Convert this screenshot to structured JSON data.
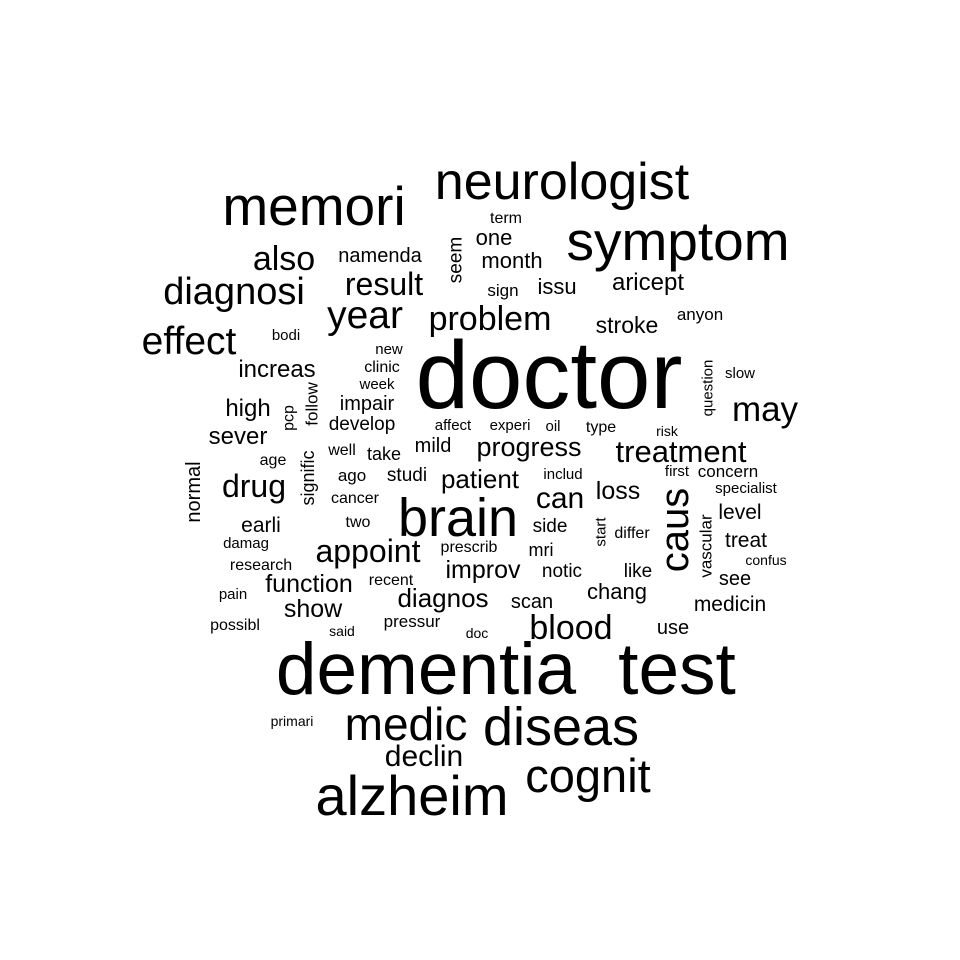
{
  "chart_data": {
    "type": "wordcloud",
    "text_color": "#000000",
    "background": "#ffffff",
    "words": [
      {
        "text": "doctor",
        "weight": 100
      },
      {
        "text": "dementia",
        "weight": 76
      },
      {
        "text": "test",
        "weight": 76
      },
      {
        "text": "alzheim",
        "weight": 58
      },
      {
        "text": "symptom",
        "weight": 57
      },
      {
        "text": "memori",
        "weight": 57
      },
      {
        "text": "diseas",
        "weight": 56
      },
      {
        "text": "brain",
        "weight": 56
      },
      {
        "text": "neurologist",
        "weight": 54
      },
      {
        "text": "cognit",
        "weight": 49
      },
      {
        "text": "medic",
        "weight": 48
      },
      {
        "text": "caus",
        "weight": 42
      },
      {
        "text": "year",
        "weight": 41
      },
      {
        "text": "effect",
        "weight": 41
      },
      {
        "text": "diagnosi",
        "weight": 40
      },
      {
        "text": "may",
        "weight": 36
      },
      {
        "text": "also",
        "weight": 35
      },
      {
        "text": "blood",
        "weight": 35
      },
      {
        "text": "problem",
        "weight": 35
      },
      {
        "text": "result",
        "weight": 33
      },
      {
        "text": "drug",
        "weight": 33
      },
      {
        "text": "appoint",
        "weight": 33
      },
      {
        "text": "treatment",
        "weight": 32
      },
      {
        "text": "declin",
        "weight": 31
      },
      {
        "text": "can",
        "weight": 31
      },
      {
        "text": "progress",
        "weight": 28
      },
      {
        "text": "patient",
        "weight": 27
      },
      {
        "text": "diagnos",
        "weight": 27
      },
      {
        "text": "improv",
        "weight": 26
      },
      {
        "text": "function",
        "weight": 26
      },
      {
        "text": "show",
        "weight": 26
      },
      {
        "text": "loss",
        "weight": 26
      },
      {
        "text": "aricept",
        "weight": 25
      },
      {
        "text": "sever",
        "weight": 25
      },
      {
        "text": "high",
        "weight": 25
      },
      {
        "text": "increas",
        "weight": 25
      },
      {
        "text": "stroke",
        "weight": 24
      },
      {
        "text": "month",
        "weight": 23
      },
      {
        "text": "issu",
        "weight": 23
      },
      {
        "text": "one",
        "weight": 23
      },
      {
        "text": "chang",
        "weight": 23
      },
      {
        "text": "level",
        "weight": 22
      },
      {
        "text": "treat",
        "weight": 22
      },
      {
        "text": "earli",
        "weight": 22
      },
      {
        "text": "medicin",
        "weight": 22
      },
      {
        "text": "namenda",
        "weight": 21
      },
      {
        "text": "mild",
        "weight": 21
      },
      {
        "text": "impair",
        "weight": 21
      },
      {
        "text": "normal",
        "weight": 21
      },
      {
        "text": "use",
        "weight": 21
      },
      {
        "text": "scan",
        "weight": 21
      },
      {
        "text": "see",
        "weight": 21
      },
      {
        "text": "seem",
        "weight": 20
      },
      {
        "text": "side",
        "weight": 20
      },
      {
        "text": "develop",
        "weight": 20
      },
      {
        "text": "notic",
        "weight": 20
      },
      {
        "text": "like",
        "weight": 20
      },
      {
        "text": "studi",
        "weight": 20
      },
      {
        "text": "signific",
        "weight": 19
      },
      {
        "text": "mri",
        "weight": 19
      },
      {
        "text": "take",
        "weight": 19
      },
      {
        "text": "follow",
        "weight": 18
      },
      {
        "text": "anyon",
        "weight": 18
      },
      {
        "text": "sign",
        "weight": 18
      },
      {
        "text": "ago",
        "weight": 18
      },
      {
        "text": "pressur",
        "weight": 18
      },
      {
        "text": "vascular",
        "weight": 18
      },
      {
        "text": "concern",
        "weight": 18
      },
      {
        "text": "type",
        "weight": 17
      },
      {
        "text": "two",
        "weight": 17
      },
      {
        "text": "cancer",
        "weight": 17
      },
      {
        "text": "clinic",
        "weight": 17
      },
      {
        "text": "possibl",
        "weight": 17
      },
      {
        "text": "research",
        "weight": 17
      },
      {
        "text": "differ",
        "weight": 17
      },
      {
        "text": "age",
        "weight": 17
      },
      {
        "text": "term",
        "weight": 17
      },
      {
        "text": "pcp",
        "weight": 17
      },
      {
        "text": "well",
        "weight": 17
      },
      {
        "text": "prescrib",
        "weight": 17
      },
      {
        "text": "recent",
        "weight": 17
      },
      {
        "text": "bodi",
        "weight": 16
      },
      {
        "text": "new",
        "weight": 16
      },
      {
        "text": "experi",
        "weight": 16
      },
      {
        "text": "affect",
        "weight": 16
      },
      {
        "text": "oil",
        "weight": 16
      },
      {
        "text": "question",
        "weight": 16
      },
      {
        "text": "slow",
        "weight": 16
      },
      {
        "text": "week",
        "weight": 16
      },
      {
        "text": "first",
        "weight": 16
      },
      {
        "text": "specialist",
        "weight": 16
      },
      {
        "text": "start",
        "weight": 16
      },
      {
        "text": "includ",
        "weight": 16
      },
      {
        "text": "damag",
        "weight": 16
      },
      {
        "text": "pain",
        "weight": 16
      },
      {
        "text": "said",
        "weight": 15
      },
      {
        "text": "doc",
        "weight": 15
      },
      {
        "text": "primari",
        "weight": 15
      },
      {
        "text": "risk",
        "weight": 15
      },
      {
        "text": "confus",
        "weight": 15
      }
    ]
  }
}
